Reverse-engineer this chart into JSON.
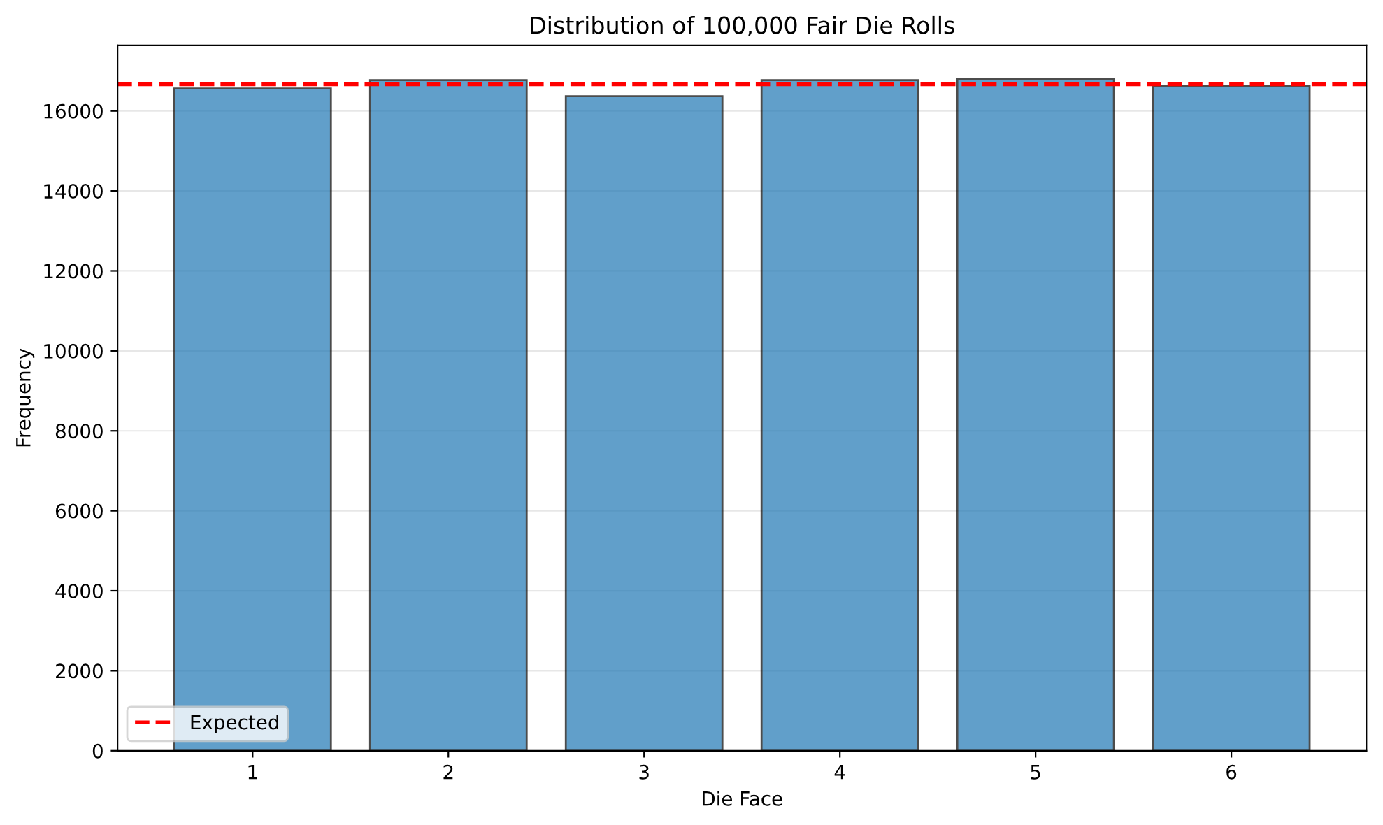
{
  "chart_data": {
    "type": "bar",
    "title": "Distribution of 100,000 Fair Die Rolls",
    "xlabel": "Die Face",
    "ylabel": "Frequency",
    "categories": [
      "1",
      "2",
      "3",
      "4",
      "5",
      "6"
    ],
    "values": [
      16560,
      16770,
      16370,
      16770,
      16800,
      16630
    ],
    "color": "#1f77b4",
    "ylim": [
      0,
      17640
    ],
    "yticks": [
      0,
      2000,
      4000,
      6000,
      8000,
      10000,
      12000,
      14000,
      16000
    ],
    "ref_lines": [
      {
        "axis": "y",
        "value": 16667,
        "label": "Expected",
        "color": "#ff0000",
        "line_style": "dashed"
      }
    ],
    "grid": "y",
    "legend": "bottom left"
  }
}
